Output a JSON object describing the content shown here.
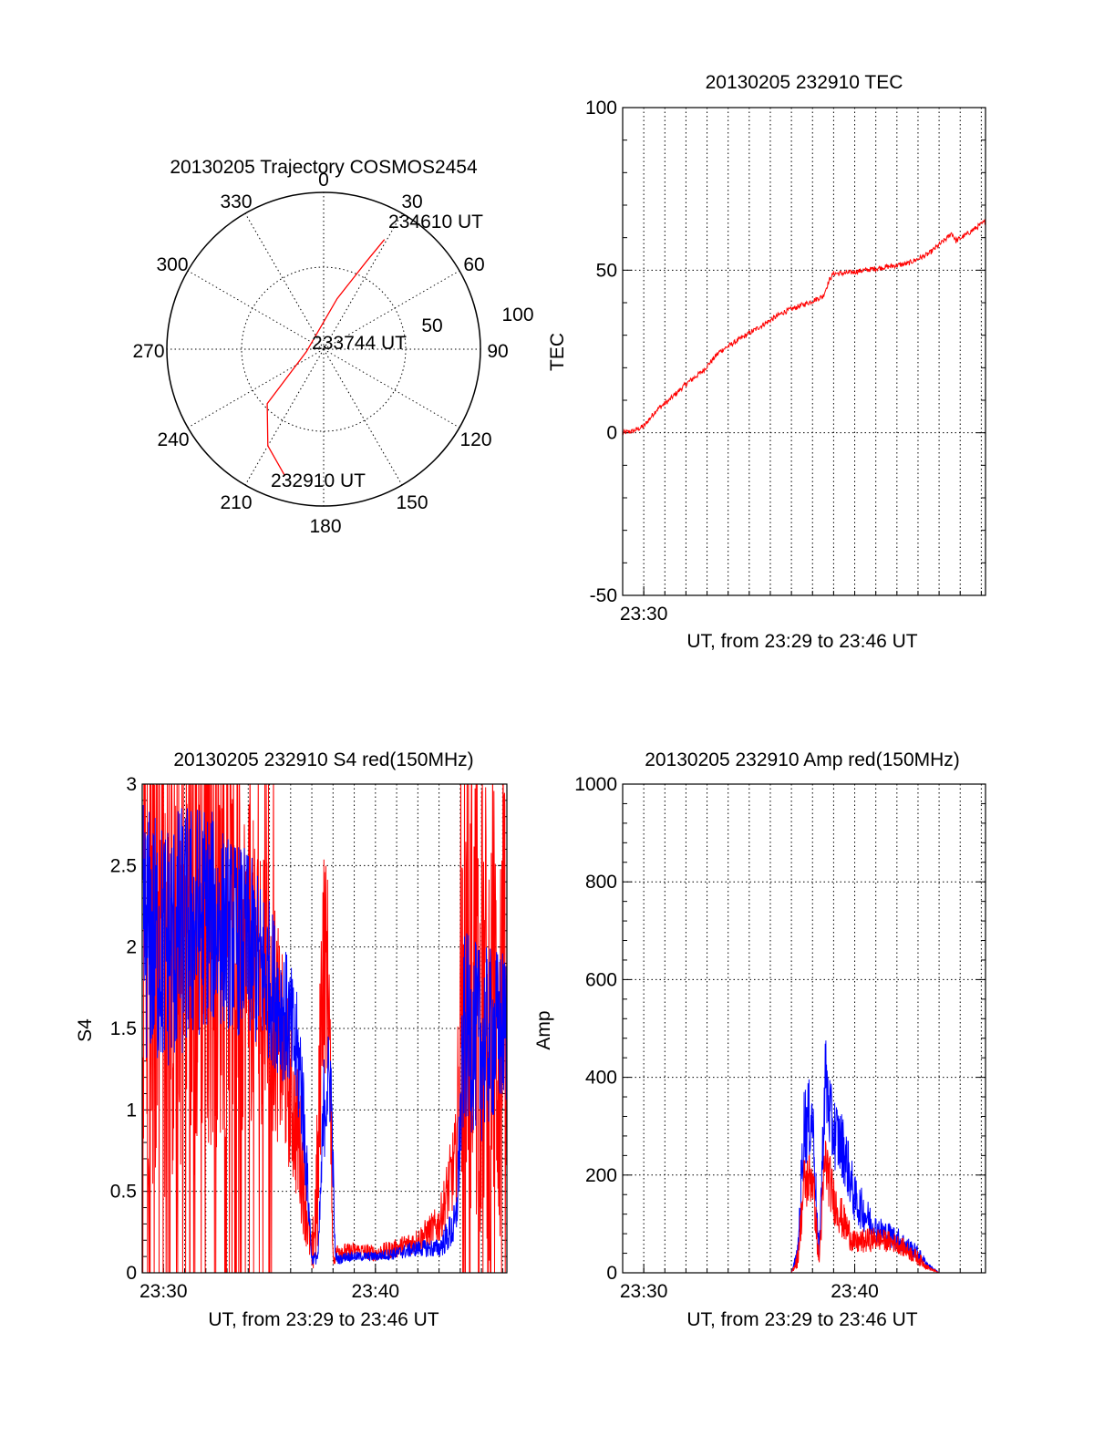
{
  "colors": {
    "red": "#ff0000",
    "blue": "#0000ff",
    "axis": "#000000"
  },
  "chart_data": [
    {
      "id": "trajectory",
      "type": "polar",
      "title": "20130205 Trajectory COSMOS2454",
      "angular_ticks": [
        "0",
        "30",
        "60",
        "90",
        "120",
        "150",
        "180",
        "210",
        "240",
        "270",
        "300",
        "330"
      ],
      "radial_ticks": [
        "50",
        "100"
      ],
      "grid": true,
      "trajectory": {
        "color": "red",
        "points": [
          {
            "az": 197,
            "el": 14
          },
          {
            "az": 210,
            "el": 26
          },
          {
            "az": 226,
            "el": 45
          },
          {
            "az": 262,
            "el": 80
          },
          {
            "az": 15,
            "el": 60
          },
          {
            "az": 26,
            "el": 34
          },
          {
            "az": 29,
            "el": 18
          }
        ]
      },
      "annotations": [
        {
          "text": "234610 UT",
          "az": 27,
          "el": 15
        },
        {
          "text": "233744 UT",
          "az": 85,
          "el": 83
        },
        {
          "text": "232910 UT",
          "az": 184,
          "el": 18
        }
      ]
    },
    {
      "id": "tec",
      "type": "line",
      "title": "20130205 232910 TEC",
      "xlabel": "UT, from 23:29 to 23:46 UT",
      "ylabel": "TEC",
      "xlim_min": [
        29.0,
        46.2
      ],
      "ylim": [
        -50,
        100
      ],
      "yticks": [
        "100",
        "50",
        "0",
        "-50"
      ],
      "xticks": [
        {
          "min": 30,
          "label": "23:30"
        }
      ],
      "grid": true,
      "series": [
        {
          "color": "red",
          "x": [
            29.0,
            29.5,
            30.0,
            30.6,
            31.2,
            32.0,
            32.8,
            33.6,
            34.6,
            35.6,
            36.6,
            37.8,
            38.5,
            38.8,
            39.0,
            39.5,
            40.5,
            41.5,
            42.5,
            43.5,
            44.4,
            44.6,
            44.8,
            45.3,
            46.2
          ],
          "y": [
            0,
            0.5,
            2,
            7,
            10,
            15,
            19,
            25,
            29,
            33,
            37,
            40,
            42,
            47,
            49,
            49,
            50,
            51,
            52,
            55,
            60,
            61.5,
            59,
            61,
            65
          ]
        }
      ]
    },
    {
      "id": "s4",
      "type": "line",
      "title": "20130205 232910 S4 red(150MHz)",
      "xlabel": "UT, from 23:29 to 23:46 UT",
      "ylabel": "S4",
      "xlim_min": [
        29.0,
        46.2
      ],
      "ylim": [
        0,
        3
      ],
      "yticks": [
        "3",
        "2.5",
        "2",
        "1.5",
        "1",
        "0.5",
        "0"
      ],
      "xticks": [
        {
          "min": 30,
          "label": "23:30"
        },
        {
          "min": 40,
          "label": "23:40"
        }
      ],
      "grid": true,
      "series": [
        {
          "color": "red",
          "x": [
            29.0,
            30.0,
            31.0,
            32.0,
            33.0,
            34.0,
            35.0,
            36.0,
            36.5,
            37.0,
            37.3,
            37.5,
            37.8,
            38.0,
            38.3,
            38.6,
            39.0,
            40.0,
            41.0,
            42.0,
            43.0,
            43.8,
            44.2,
            45.0,
            46.0
          ],
          "y": [
            2.0,
            1.9,
            2.0,
            2.2,
            2.1,
            1.9,
            1.7,
            1.1,
            0.7,
            0.08,
            0.6,
            2.0,
            1.8,
            0.08,
            0.15,
            0.12,
            0.14,
            0.12,
            0.15,
            0.2,
            0.3,
            0.7,
            2.0,
            1.6,
            1.5
          ],
          "spread": [
            1.5,
            1.5,
            1.5,
            1.5,
            1.3,
            1.0,
            0.8,
            0.5,
            0.4,
            0.1,
            0.6,
            0.8,
            0.6,
            0.05,
            0.06,
            0.06,
            0.05,
            0.05,
            0.06,
            0.08,
            0.12,
            0.3,
            1.5,
            1.5,
            1.5
          ]
        },
        {
          "color": "blue",
          "x": [
            29.0,
            30.0,
            31.0,
            32.0,
            33.0,
            34.0,
            35.0,
            36.0,
            36.5,
            37.0,
            37.3,
            37.6,
            37.9,
            38.1,
            38.3,
            38.6,
            39.0,
            40.0,
            41.0,
            42.0,
            43.0,
            43.8,
            44.2,
            45.0,
            46.0
          ],
          "y": [
            2.1,
            2.0,
            2.1,
            2.2,
            2.1,
            2.0,
            1.8,
            1.5,
            1.2,
            0.08,
            0.1,
            1.1,
            1.2,
            0.1,
            0.08,
            0.1,
            0.1,
            0.1,
            0.12,
            0.15,
            0.15,
            0.3,
            1.5,
            1.4,
            1.5
          ],
          "spread": [
            0.8,
            0.8,
            0.8,
            0.7,
            0.6,
            0.6,
            0.5,
            0.4,
            0.4,
            0.03,
            0.05,
            0.4,
            0.3,
            0.04,
            0.03,
            0.03,
            0.03,
            0.03,
            0.04,
            0.05,
            0.06,
            0.15,
            0.6,
            0.6,
            0.5
          ]
        }
      ]
    },
    {
      "id": "amp",
      "type": "line",
      "title": "20130205 232910 Amp red(150MHz)",
      "xlabel": "UT, from 23:29 to 23:46 UT",
      "ylabel": "Amp",
      "xlim_min": [
        29.0,
        46.2
      ],
      "ylim": [
        0,
        1000
      ],
      "yticks": [
        "1000",
        "800",
        "600",
        "400",
        "200",
        "0"
      ],
      "xticks": [
        {
          "min": 30,
          "label": "23:30"
        },
        {
          "min": 40,
          "label": "23:40"
        }
      ],
      "grid": true,
      "series": [
        {
          "color": "red",
          "x": [
            29.0,
            37.0,
            37.3,
            37.6,
            38.0,
            38.3,
            38.6,
            39.0,
            39.5,
            40.0,
            41.0,
            42.0,
            43.0,
            43.5,
            44.0,
            46.2
          ],
          "y": [
            0,
            0,
            30,
            180,
            200,
            20,
            230,
            150,
            100,
            60,
            70,
            60,
            30,
            10,
            0,
            0
          ],
          "spread": [
            0,
            0,
            20,
            60,
            60,
            20,
            70,
            50,
            40,
            25,
            25,
            20,
            15,
            5,
            0,
            0
          ]
        },
        {
          "color": "blue",
          "x": [
            29.0,
            37.0,
            37.3,
            37.6,
            38.0,
            38.3,
            38.6,
            38.9,
            39.5,
            40.0,
            41.0,
            42.0,
            43.0,
            43.5,
            44.0,
            46.2
          ],
          "y": [
            0,
            0,
            40,
            300,
            320,
            30,
            400,
            300,
            250,
            150,
            90,
            70,
            40,
            15,
            0,
            0
          ],
          "spread": [
            0,
            0,
            20,
            90,
            80,
            20,
            100,
            80,
            70,
            50,
            30,
            25,
            15,
            5,
            0,
            0
          ]
        }
      ]
    }
  ]
}
